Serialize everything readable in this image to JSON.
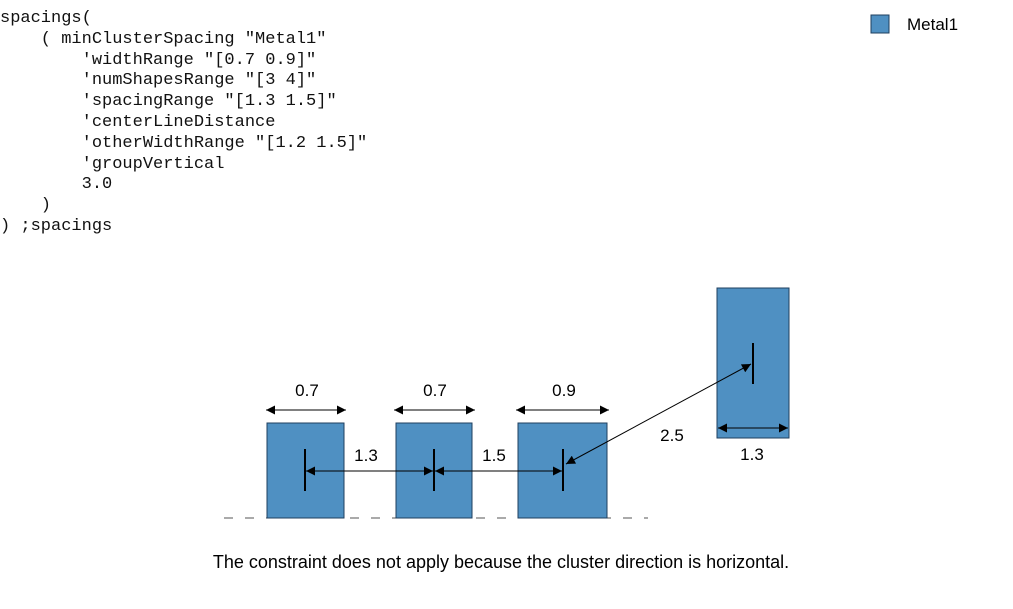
{
  "code_lines": [
    "spacings(",
    "    ( minClusterSpacing \"Metal1\"",
    "        'widthRange \"[0.7 0.9]\"",
    "        'numShapesRange \"[3 4]\"",
    "        'spacingRange \"[1.3 1.5]\"",
    "        'centerLineDistance",
    "        'otherWidthRange \"[1.2 1.5]\"",
    "        'groupVertical",
    "        3.0",
    "    )",
    ") ;spacings"
  ],
  "legend": {
    "label": "Metal1",
    "color": "#4f90c2"
  },
  "labels": {
    "width_1": "0.7",
    "width_2": "0.7",
    "width_3": "0.9",
    "spacing_1": "1.3",
    "spacing_2": "1.5",
    "diagonal_distance": "2.5",
    "other_width": "1.3"
  },
  "caption": "The constraint does not apply because the cluster direction is horizontal."
}
